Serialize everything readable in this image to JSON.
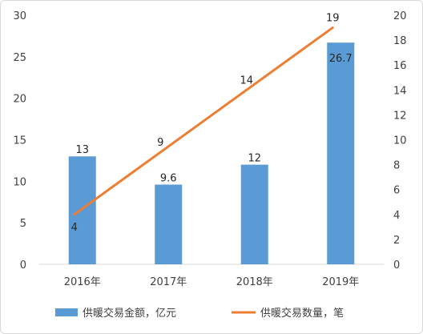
{
  "chart_data": {
    "type": "bar+line",
    "categories": [
      "2016年",
      "2017年",
      "2018年",
      "2019年"
    ],
    "series": [
      {
        "name": "供暖交易金额，亿元",
        "type": "bar",
        "axis": "left",
        "values": [
          13,
          9.6,
          12,
          26.7
        ],
        "labels": [
          "13",
          "9.6",
          "12",
          "26.7"
        ],
        "color": "#5b9bd5"
      },
      {
        "name": "供暖交易数量，笔",
        "type": "line",
        "axis": "right",
        "values": [
          4,
          9,
          14,
          19
        ],
        "labels": [
          "4",
          "9",
          "14",
          "19"
        ],
        "color": "#ed7d31"
      }
    ],
    "y_left": {
      "min": 0,
      "max": 30,
      "step": 5,
      "ticks": [
        "0",
        "5",
        "10",
        "15",
        "20",
        "25",
        "30"
      ]
    },
    "y_right": {
      "min": 0,
      "max": 20,
      "step": 2,
      "ticks": [
        "0",
        "2",
        "4",
        "6",
        "8",
        "10",
        "12",
        "14",
        "16",
        "18",
        "20"
      ]
    },
    "grid": false,
    "legend_position": "bottom"
  }
}
